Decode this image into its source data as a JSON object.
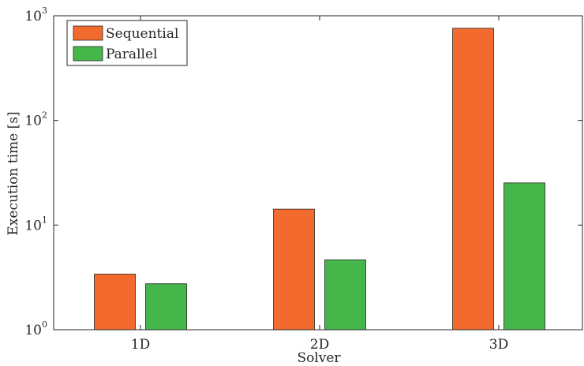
{
  "chart_data": {
    "type": "bar",
    "title": "",
    "xlabel": "Solver",
    "ylabel": "Execution time [s]",
    "yscale": "log",
    "ylim": [
      1,
      1000
    ],
    "grid": false,
    "legend_position": "top-left",
    "categories": [
      "1D",
      "2D",
      "3D"
    ],
    "y_ticks": [
      {
        "value": 1,
        "base": "10",
        "exp": "0"
      },
      {
        "value": 10,
        "base": "10",
        "exp": "1"
      },
      {
        "value": 100,
        "base": "10",
        "exp": "2"
      },
      {
        "value": 1000,
        "base": "10",
        "exp": "3"
      }
    ],
    "series": [
      {
        "name": "Sequential",
        "color": "#f26a2e",
        "values": [
          3.4,
          14.2,
          760
        ]
      },
      {
        "name": "Parallel",
        "color": "#45b649",
        "values": [
          2.75,
          4.65,
          25.3
        ]
      }
    ]
  }
}
